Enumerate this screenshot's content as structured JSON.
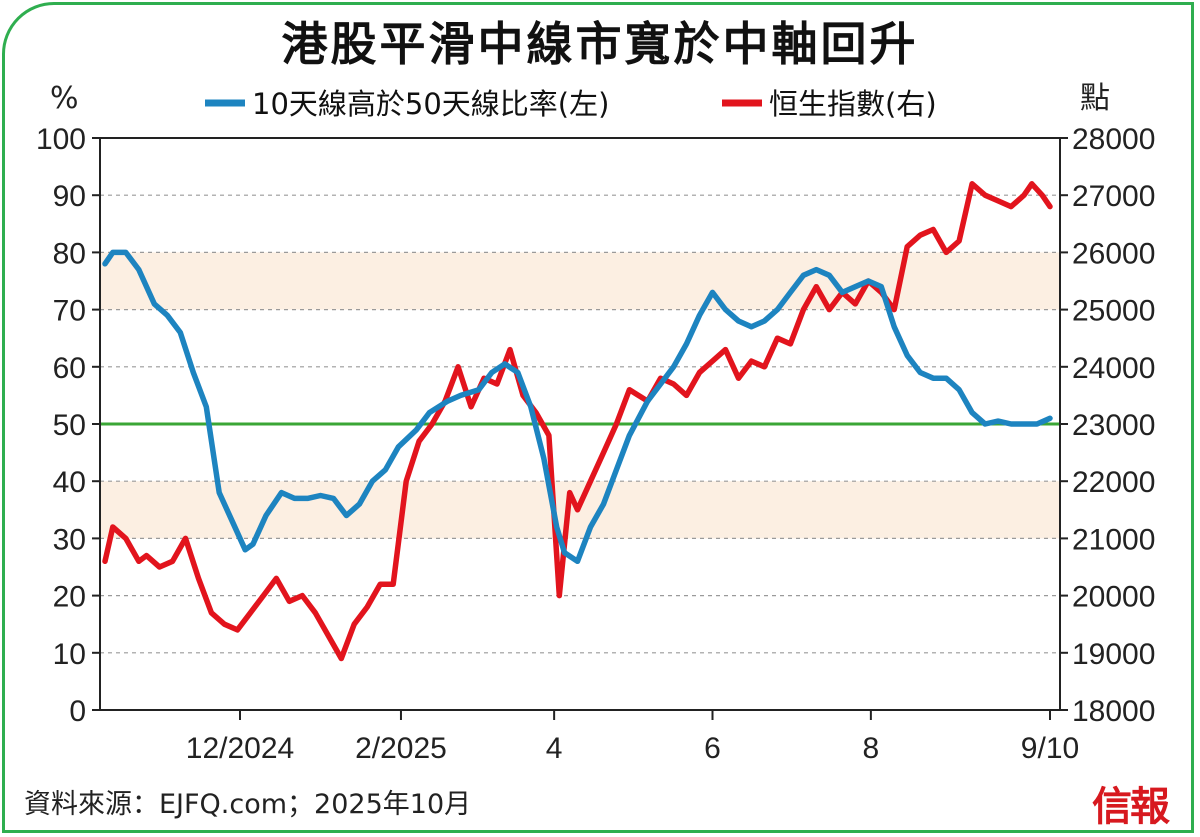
{
  "title": "港股平滑中線市寬於中軸回升",
  "source": "資料來源：EJFQ.com；2025年10月",
  "logo": "信報",
  "colors": {
    "breadth": "#1d84c0",
    "hsi": "#e2141d",
    "midline": "#3aa635",
    "band": "#fcefe2",
    "frame": "#2fae4f"
  },
  "chart_data": {
    "type": "line",
    "title": "港股平滑中線市寬於中軸回升",
    "left_axis": {
      "unit": "%",
      "range": [
        0,
        100
      ],
      "ticks": [
        0,
        10,
        20,
        30,
        40,
        50,
        60,
        70,
        80,
        90,
        100
      ]
    },
    "right_axis": {
      "unit": "點",
      "range": [
        18000,
        28000
      ],
      "ticks": [
        18000,
        19000,
        20000,
        21000,
        22000,
        23000,
        24000,
        25000,
        26000,
        27000,
        28000
      ]
    },
    "x_ticks": [
      "12/2024",
      "2/2025",
      "4",
      "6",
      "8",
      "9/10"
    ],
    "x_range": [
      "2024-10-10",
      "2025-10-09"
    ],
    "grid": "horizontal dashed",
    "legend_placement": "top",
    "reference_line": {
      "axis": "left",
      "value": 50
    },
    "shaded_bands": [
      [
        30,
        40
      ],
      [
        70,
        80
      ]
    ],
    "series": [
      {
        "name": "10天線高於50天線比率(左)",
        "axis": "left",
        "x": [
          "2024-10-10",
          "2024-10-13",
          "2024-10-18",
          "2024-10-23",
          "2024-10-29",
          "2024-11-03",
          "2024-11-08",
          "2024-11-13",
          "2024-11-18",
          "2024-11-23",
          "2024-11-28",
          "2024-12-03",
          "2024-12-06",
          "2024-12-11",
          "2024-12-17",
          "2024-12-22",
          "2024-12-27",
          "2025-01-01",
          "2025-01-06",
          "2025-01-11",
          "2025-01-16",
          "2025-01-21",
          "2025-01-26",
          "2025-01-31",
          "2025-02-07",
          "2025-02-12",
          "2025-02-19",
          "2025-02-24",
          "2025-03-03",
          "2025-03-08",
          "2025-03-13",
          "2025-03-18",
          "2025-03-23",
          "2025-03-28",
          "2025-04-02",
          "2025-04-05",
          "2025-04-10",
          "2025-04-15",
          "2025-04-20",
          "2025-04-25",
          "2025-04-30",
          "2025-05-07",
          "2025-05-12",
          "2025-05-17",
          "2025-05-22",
          "2025-05-27",
          "2025-06-01",
          "2025-06-06",
          "2025-06-11",
          "2025-06-16",
          "2025-06-21",
          "2025-06-26",
          "2025-07-01",
          "2025-07-06",
          "2025-07-11",
          "2025-07-16",
          "2025-07-21",
          "2025-07-26",
          "2025-07-31",
          "2025-08-05",
          "2025-08-10",
          "2025-08-15",
          "2025-08-20",
          "2025-08-25",
          "2025-08-30",
          "2025-09-04",
          "2025-09-09",
          "2025-09-14",
          "2025-09-19",
          "2025-09-24",
          "2025-09-29",
          "2025-10-04",
          "2025-10-09"
        ],
        "y": [
          78,
          80,
          80,
          77,
          71,
          69,
          66,
          59,
          53,
          38,
          33,
          28,
          29,
          34,
          38,
          37,
          37,
          37.5,
          37,
          34,
          36,
          40,
          42,
          46,
          49,
          52,
          54,
          55,
          56,
          59,
          60.5,
          59,
          53,
          44,
          32,
          27.5,
          26,
          32,
          36,
          42,
          48,
          54,
          57,
          60,
          64,
          69,
          73,
          70,
          68,
          67,
          68,
          70,
          73,
          76,
          77,
          76,
          73,
          74,
          75,
          74,
          67,
          62,
          59,
          58,
          58,
          56,
          52,
          50,
          50.5,
          50,
          50,
          50,
          51
        ]
      },
      {
        "name": "恒生指數(右)",
        "axis": "right",
        "x": [
          "2024-10-10",
          "2024-10-13",
          "2024-10-18",
          "2024-10-23",
          "2024-10-26",
          "2024-10-31",
          "2024-11-05",
          "2024-11-10",
          "2024-11-15",
          "2024-11-20",
          "2024-11-25",
          "2024-11-30",
          "2024-12-05",
          "2024-12-10",
          "2024-12-15",
          "2024-12-20",
          "2024-12-25",
          "2024-12-30",
          "2025-01-04",
          "2025-01-09",
          "2025-01-14",
          "2025-01-19",
          "2025-01-24",
          "2025-01-29",
          "2025-02-03",
          "2025-02-08",
          "2025-02-13",
          "2025-02-18",
          "2025-02-23",
          "2025-02-28",
          "2025-03-05",
          "2025-03-10",
          "2025-03-15",
          "2025-03-20",
          "2025-03-25",
          "2025-03-30",
          "2025-04-03",
          "2025-04-07",
          "2025-04-10",
          "2025-04-15",
          "2025-04-20",
          "2025-04-25",
          "2025-04-30",
          "2025-05-07",
          "2025-05-12",
          "2025-05-17",
          "2025-05-22",
          "2025-05-27",
          "2025-06-01",
          "2025-06-06",
          "2025-06-11",
          "2025-06-16",
          "2025-06-21",
          "2025-06-26",
          "2025-07-01",
          "2025-07-06",
          "2025-07-11",
          "2025-07-16",
          "2025-07-21",
          "2025-07-26",
          "2025-07-31",
          "2025-08-05",
          "2025-08-10",
          "2025-08-15",
          "2025-08-20",
          "2025-08-25",
          "2025-08-30",
          "2025-09-04",
          "2025-09-09",
          "2025-09-14",
          "2025-09-19",
          "2025-09-24",
          "2025-09-29",
          "2025-10-02",
          "2025-10-06",
          "2025-10-09"
        ],
        "y": [
          20600,
          21200,
          21000,
          20600,
          20700,
          20500,
          20600,
          21000,
          20300,
          19700,
          19500,
          19400,
          19700,
          20000,
          20300,
          19900,
          20000,
          19700,
          19300,
          18900,
          19500,
          19800,
          20200,
          20200,
          22000,
          22700,
          23000,
          23400,
          24000,
          23300,
          23800,
          23700,
          24300,
          23500,
          23200,
          22800,
          20000,
          21800,
          21500,
          22000,
          22500,
          23000,
          23600,
          23400,
          23800,
          23700,
          23500,
          23900,
          24100,
          24300,
          23800,
          24100,
          24000,
          24500,
          24400,
          25000,
          25400,
          25000,
          25300,
          25100,
          25500,
          25300,
          25000,
          26100,
          26300,
          26400,
          26000,
          26200,
          27200,
          27000,
          26900,
          26800,
          27000,
          27200,
          27000,
          26800
        ]
      }
    ]
  }
}
